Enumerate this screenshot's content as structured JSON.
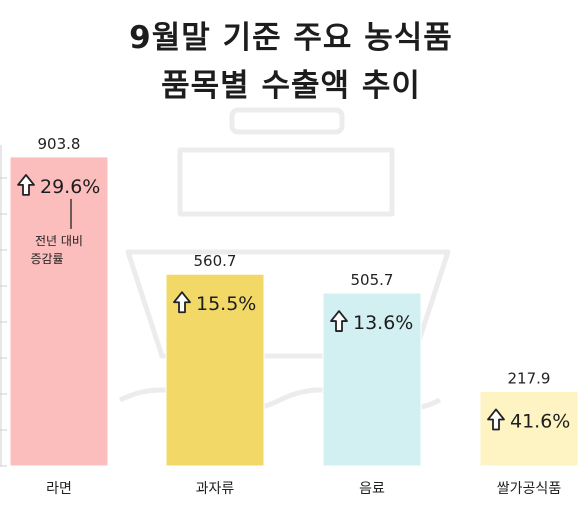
{
  "title_lines": [
    "9월말 기준 주요 농식품",
    "품목별 수출액 추이"
  ],
  "chart_data": {
    "type": "bar",
    "title": "9월말 기준 주요 농식품 품목별 수출액 추이",
    "categories": [
      "라면",
      "과자류",
      "음료",
      "쌀가공식품"
    ],
    "values": [
      903.8,
      560.7,
      505.7,
      217.9
    ],
    "value_labels": [
      "903.8",
      "560.7",
      "505.7",
      "217.9"
    ],
    "growth_rates": [
      "29.6%",
      "15.5%",
      "13.6%",
      "41.6%"
    ],
    "annotation": [
      "전년 대비",
      "증감률"
    ],
    "colors": [
      "#fcbdbd",
      "#f2d867",
      "#d2eff2",
      "#fdf3c3"
    ],
    "ylim": [
      0,
      1000
    ],
    "grid": false,
    "legend": "none"
  }
}
